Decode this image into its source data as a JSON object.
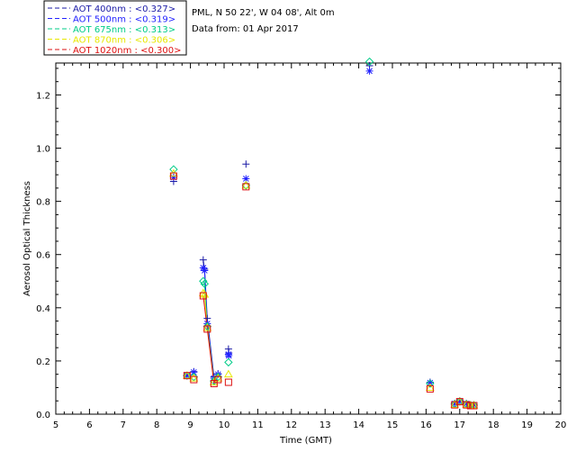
{
  "header": {
    "site": "PML, N 50 22', W 04 08', Alt 0m",
    "date": "Data from: 01 Apr 2017"
  },
  "legend": [
    {
      "label": "AOT  400nm : <0.327>",
      "color": "#1a1aa6"
    },
    {
      "label": "AOT  500nm : <0.319>",
      "color": "#2222ff"
    },
    {
      "label": "AOT  675nm : <0.313>",
      "color": "#00cc88"
    },
    {
      "label": "AOT  870nm : <0.306>",
      "color": "#e8e800"
    },
    {
      "label": "AOT 1020nm : <0.300>",
      "color": "#dd1010"
    }
  ],
  "chart_data": {
    "type": "scatter",
    "xlabel": "Time (GMT)",
    "ylabel": "Aerosol Optical Thickness",
    "xlim": [
      5,
      20
    ],
    "ylim": [
      0,
      1.32
    ],
    "xticks": [
      5,
      6,
      7,
      8,
      9,
      10,
      11,
      12,
      13,
      14,
      15,
      16,
      17,
      18,
      19,
      20
    ],
    "yticks": [
      0.0,
      0.2,
      0.4,
      0.6,
      0.8,
      1.0,
      1.2
    ],
    "ytick_labels": [
      "0.0",
      "0.2",
      "0.4",
      "0.6",
      "0.8",
      "1.0",
      "1.2"
    ],
    "series": [
      {
        "name": "AOT  400nm : <0.327>",
        "color": "#1a1aa6",
        "marker": "plus",
        "x": [
          8.5,
          8.9,
          9.1,
          9.38,
          9.42,
          9.5,
          9.7,
          9.82,
          10.13,
          10.14,
          10.65,
          14.32,
          16.12,
          16.85,
          17.0,
          17.2,
          17.32,
          17.42
        ],
        "y": [
          0.875,
          0.145,
          0.16,
          0.58,
          0.545,
          0.36,
          0.14,
          0.152,
          0.245,
          0.23,
          0.94,
          1.31,
          0.12,
          0.04,
          0.05,
          0.04,
          0.035,
          0.035
        ]
      },
      {
        "name": "AOT  500nm : <0.319>",
        "color": "#2222ff",
        "marker": "asterisk",
        "x": [
          8.5,
          8.9,
          9.1,
          9.38,
          9.42,
          9.5,
          9.7,
          9.82,
          10.13,
          10.14,
          10.65,
          14.32,
          16.12,
          16.85,
          17.0,
          17.2,
          17.32,
          17.42
        ],
        "y": [
          0.89,
          0.145,
          0.158,
          0.55,
          0.54,
          0.34,
          0.135,
          0.15,
          0.225,
          0.22,
          0.885,
          1.29,
          0.118,
          0.04,
          0.048,
          0.04,
          0.035,
          0.035
        ]
      },
      {
        "name": "AOT  675nm : <0.313>",
        "color": "#00cc88",
        "marker": "diamond",
        "x": [
          8.5,
          8.9,
          9.1,
          9.38,
          9.42,
          9.5,
          9.7,
          9.82,
          10.13,
          10.65,
          14.32,
          16.12,
          16.85,
          17.0,
          17.2,
          17.32,
          17.42
        ],
        "y": [
          0.92,
          0.145,
          0.14,
          0.5,
          0.49,
          0.33,
          0.125,
          0.14,
          0.195,
          0.86,
          1.325,
          0.115,
          0.038,
          0.048,
          0.038,
          0.034,
          0.034
        ]
      },
      {
        "name": "AOT  870nm : <0.306>",
        "color": "#e8e800",
        "marker": "triangle",
        "x": [
          8.5,
          8.9,
          9.1,
          9.38,
          9.42,
          9.5,
          9.7,
          9.82,
          10.13,
          10.65,
          14.32,
          16.12,
          16.85,
          17.0,
          17.2,
          17.32,
          17.42
        ],
        "y": [
          0.905,
          0.145,
          0.135,
          0.455,
          0.45,
          0.325,
          0.12,
          0.135,
          0.15,
          0.86,
          1.34,
          0.1,
          0.036,
          0.047,
          0.036,
          0.033,
          0.033
        ]
      },
      {
        "name": "AOT 1020nm : <0.300>",
        "color": "#dd1010",
        "marker": "square",
        "x": [
          8.5,
          8.9,
          9.1,
          9.38,
          9.5,
          9.7,
          9.82,
          10.13,
          10.65,
          14.32,
          16.12,
          16.85,
          17.0,
          17.2,
          17.32,
          17.42
        ],
        "y": [
          0.895,
          0.145,
          0.13,
          0.445,
          0.32,
          0.115,
          0.13,
          0.12,
          0.855,
          1.345,
          0.095,
          0.035,
          0.047,
          0.035,
          0.032,
          0.032
        ]
      }
    ]
  }
}
